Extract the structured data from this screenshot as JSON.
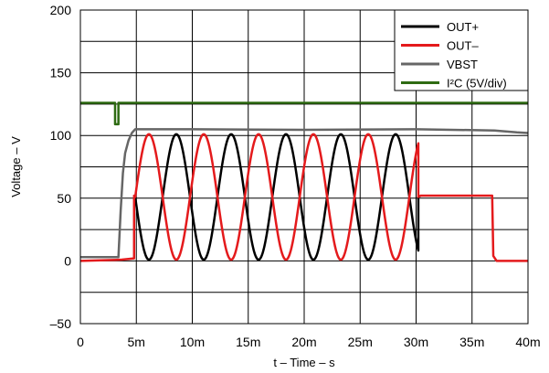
{
  "chart_data": {
    "type": "line",
    "title": "",
    "xlabel": "t – Time – s",
    "ylabel": "Voltage – V",
    "xlim": [
      0,
      0.04
    ],
    "ylim": [
      -50,
      200
    ],
    "x_ticks": [
      {
        "value": 0,
        "label": "0"
      },
      {
        "value": 0.005,
        "label": "5m"
      },
      {
        "value": 0.01,
        "label": "10m"
      },
      {
        "value": 0.015,
        "label": "15m"
      },
      {
        "value": 0.02,
        "label": "20m"
      },
      {
        "value": 0.025,
        "label": "25m"
      },
      {
        "value": 0.03,
        "label": "30m"
      },
      {
        "value": 0.035,
        "label": "35m"
      },
      {
        "value": 0.04,
        "label": "40m"
      }
    ],
    "y_ticks": [
      {
        "value": -50,
        "label": "–50"
      },
      {
        "value": 0,
        "label": "0"
      },
      {
        "value": 50,
        "label": "50"
      },
      {
        "value": 100,
        "label": "100"
      },
      {
        "value": 150,
        "label": "150"
      },
      {
        "value": 200,
        "label": "200"
      }
    ],
    "grid": true,
    "legend_position": "top-right",
    "legend": [
      {
        "label": "OUT+",
        "color": "#000000"
      },
      {
        "label": "OUT–",
        "color": "#e41a1c"
      },
      {
        "label": "VBST",
        "color": "#666666"
      },
      {
        "label": "I²C (5V/div)",
        "color": "#2e6b12"
      }
    ],
    "series": [
      {
        "name": "OUT+",
        "color": "#000000",
        "segments": [
          {
            "kind": "points",
            "x": [
              0.0048,
              0.0049
            ],
            "y": [
              52,
              51
            ]
          },
          {
            "kind": "sine",
            "x_start": 0.0049,
            "x_end": 0.0302,
            "period": 0.0049,
            "phase_x": 0.0049,
            "offset": 51,
            "amplitude": 50,
            "sign": -1
          },
          {
            "kind": "points",
            "x": [
              0.0302,
              0.0304
            ],
            "y": [
              51,
              52
            ]
          }
        ]
      },
      {
        "name": "OUT–",
        "color": "#e41a1c",
        "segments": [
          {
            "kind": "points",
            "x": [
              0,
              0.0037,
              0.0048,
              0.0048,
              0.0049
            ],
            "y": [
              0,
              1,
              2,
              52,
              51
            ]
          },
          {
            "kind": "sine",
            "x_start": 0.0049,
            "x_end": 0.0302,
            "period": 0.0049,
            "phase_x": 0.0049,
            "offset": 51,
            "amplitude": 50,
            "sign": 1
          },
          {
            "kind": "points",
            "x": [
              0.0302,
              0.0304,
              0.0368,
              0.0369,
              0.0372,
              0.04
            ],
            "y": [
              51,
              52,
              52,
              4,
              0,
              0
            ]
          }
        ]
      },
      {
        "name": "VBST",
        "color": "#666666",
        "segments": [
          {
            "kind": "points",
            "x": [
              0,
              0.0034,
              0.0036,
              0.0038,
              0.004,
              0.0043,
              0.0046,
              0.0049,
              0.0052,
              0.01,
              0.02,
              0.03,
              0.037,
              0.039,
              0.04
            ],
            "y": [
              3,
              3,
              40,
              70,
              86,
              96,
              102,
              105,
              105,
              105,
              104.5,
              105,
              104,
              102.5,
              102
            ]
          }
        ]
      },
      {
        "name": "I²C (5V/div)",
        "color": "#2e6b12",
        "segments": [
          {
            "kind": "points",
            "x": [
              0,
              0.0031,
              0.0031,
              0.0034,
              0.0034,
              0.04
            ],
            "y": [
              126,
              126,
              109,
              109,
              126,
              126
            ]
          }
        ]
      }
    ]
  }
}
